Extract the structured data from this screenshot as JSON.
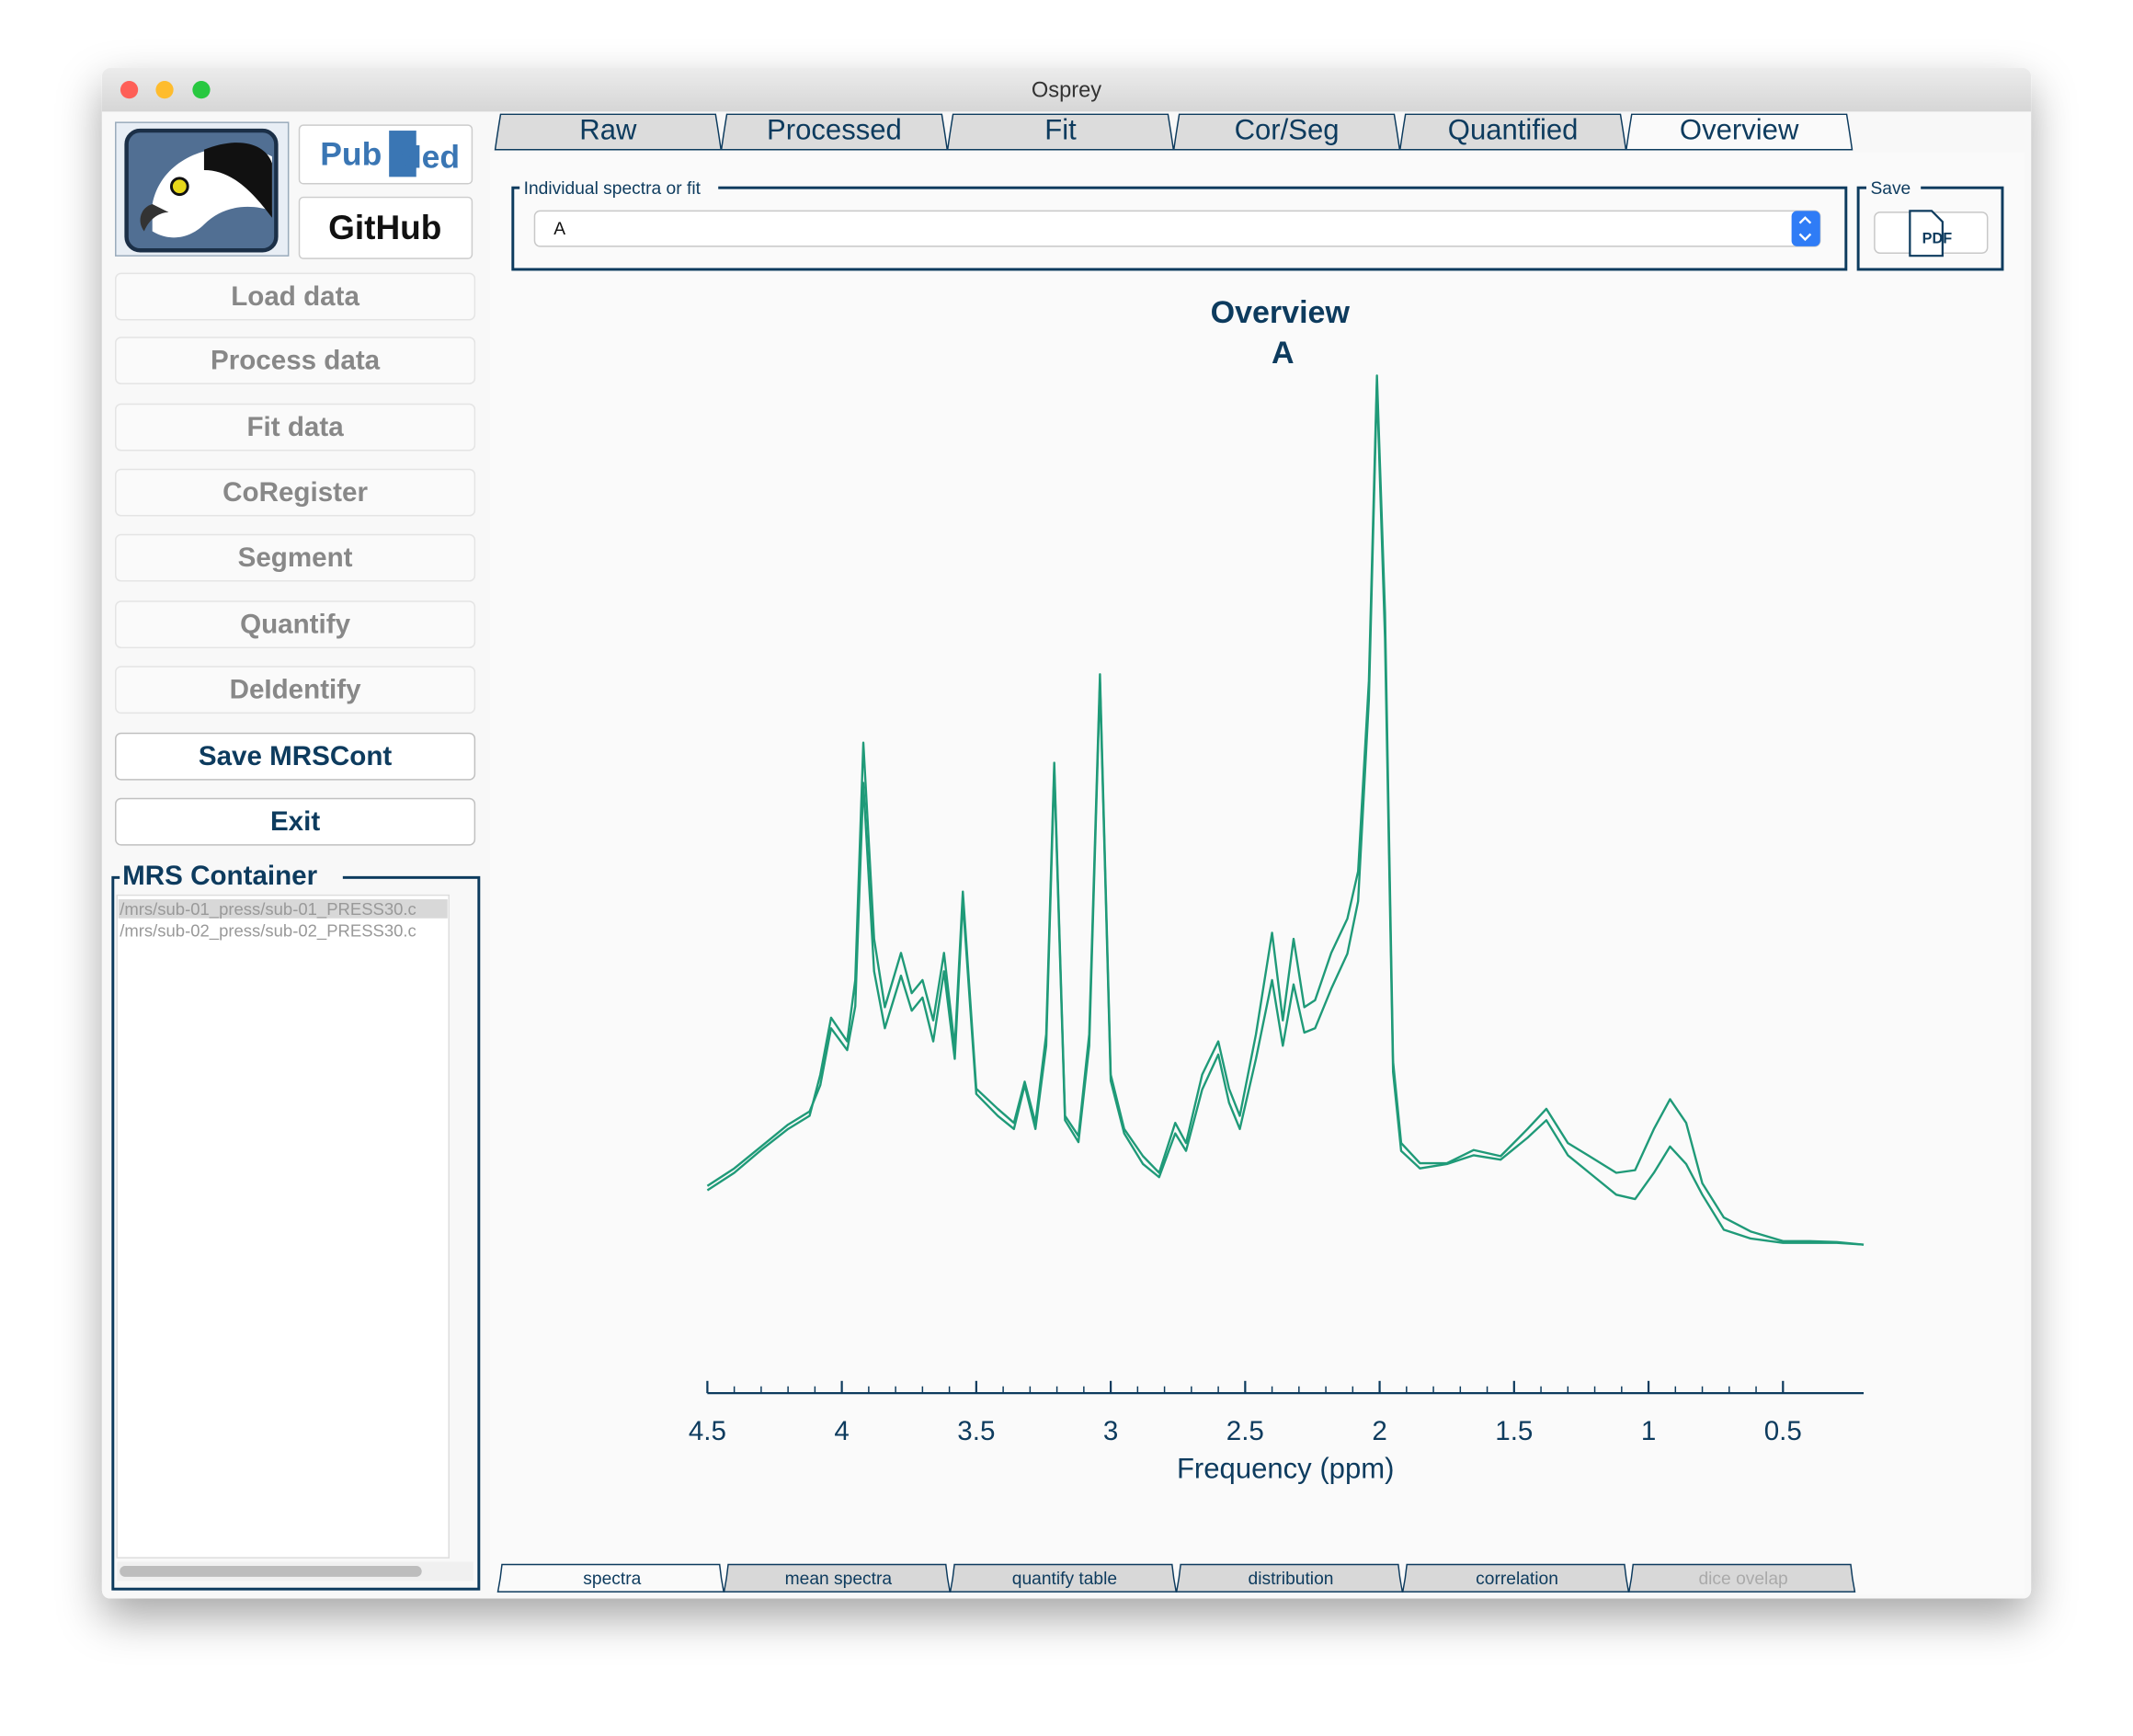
{
  "window": {
    "title": "Osprey"
  },
  "links": {
    "pubmed_left": "Pub",
    "pubmed_right": "Med",
    "github": "GitHub"
  },
  "sidebar": {
    "buttons": [
      "Load data",
      "Process data",
      "Fit data",
      "CoRegister",
      "Segment",
      "Quantify",
      "DeIdentify",
      "Save MRSCont",
      "Exit"
    ],
    "container_title": "MRS Container",
    "files": [
      "/mrs/sub-01_press/sub-01_PRESS30.c",
      "/mrs/sub-02_press/sub-02_PRESS30.c"
    ]
  },
  "tabs": [
    "Raw",
    "Processed",
    "Fit",
    "Cor/Seg",
    "Quantified",
    "Overview"
  ],
  "selector": {
    "label": "Individual spectra or fit",
    "value": "A"
  },
  "save": {
    "label": "Save",
    "button": "PDF"
  },
  "bottom_tabs": [
    "spectra",
    "mean spectra",
    "quantify table",
    "distribution",
    "correlation",
    "dice ovelap"
  ],
  "chart_data": {
    "type": "line",
    "title": "Overview",
    "subtitle": "A",
    "x_label": "Frequency (ppm)",
    "xlim": [
      4.5,
      0.2
    ],
    "xticks": [
      4.5,
      4,
      3.5,
      3,
      2.5,
      2,
      1.5,
      1,
      0.5
    ],
    "x": [
      4.5,
      4.4,
      4.3,
      4.2,
      4.12,
      4.08,
      4.04,
      3.98,
      3.95,
      3.92,
      3.88,
      3.84,
      3.78,
      3.74,
      3.7,
      3.66,
      3.62,
      3.58,
      3.55,
      3.5,
      3.42,
      3.36,
      3.32,
      3.28,
      3.24,
      3.21,
      3.17,
      3.12,
      3.08,
      3.04,
      3.0,
      2.95,
      2.88,
      2.82,
      2.76,
      2.72,
      2.66,
      2.6,
      2.56,
      2.52,
      2.46,
      2.4,
      2.36,
      2.32,
      2.28,
      2.24,
      2.18,
      2.12,
      2.08,
      2.04,
      2.01,
      1.98,
      1.95,
      1.92,
      1.85,
      1.75,
      1.65,
      1.55,
      1.45,
      1.38,
      1.3,
      1.22,
      1.12,
      1.05,
      0.98,
      0.92,
      0.86,
      0.8,
      0.72,
      0.62,
      0.5,
      0.4,
      0.3,
      0.2
    ],
    "series": [
      {
        "color": "#1f9a78",
        "values": [
          7.0,
          9.0,
          11.6,
          14.0,
          15.5,
          20.2,
          26.7,
          24.0,
          31.0,
          58.1,
          35.7,
          27.9,
          34.1,
          29.5,
          31.0,
          26.4,
          34.1,
          23.3,
          41.1,
          18.6,
          16.3,
          14.7,
          19.4,
          14.7,
          24.8,
          55.8,
          15.5,
          13.2,
          24.8,
          65.9,
          20.2,
          14.0,
          10.9,
          9.0,
          14.7,
          12.4,
          20.2,
          24.0,
          18.6,
          15.5,
          24.8,
          36.4,
          26.4,
          35.7,
          27.9,
          28.7,
          34.1,
          38.0,
          43.4,
          65.1,
          100,
          72.9,
          21.7,
          12.4,
          10.1,
          10.1,
          11.6,
          10.9,
          14.0,
          16.3,
          12.4,
          10.9,
          9.0,
          9.3,
          14.0,
          17.4,
          14.7,
          7.8,
          3.9,
          2.3,
          1.2,
          1.2,
          1.1,
          0.8
        ]
      },
      {
        "color": "#1f9a78",
        "values": [
          7.5,
          9.5,
          12.0,
          14.5,
          16.0,
          19.0,
          25.5,
          23.0,
          28.0,
          53.5,
          32.0,
          25.5,
          31.5,
          27.5,
          29.0,
          24.0,
          32.0,
          22.0,
          40.0,
          18.0,
          15.5,
          14.0,
          19.0,
          14.0,
          23.5,
          55.0,
          15.0,
          12.5,
          23.5,
          65.0,
          19.5,
          13.5,
          10.0,
          8.5,
          13.5,
          11.5,
          18.5,
          22.5,
          17.0,
          14.0,
          22.0,
          31.0,
          23.5,
          30.5,
          25.0,
          25.5,
          30.0,
          34.0,
          40.0,
          63.0,
          99.0,
          70.0,
          20.5,
          11.5,
          9.5,
          10.0,
          11.0,
          10.5,
          13.0,
          15.0,
          11.0,
          9.0,
          6.5,
          6.0,
          9.0,
          12.0,
          10.0,
          6.5,
          2.5,
          1.5,
          1.0,
          1.0,
          1.0,
          0.8
        ]
      }
    ]
  }
}
